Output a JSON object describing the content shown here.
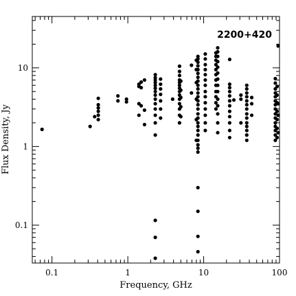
{
  "chart_data": {
    "type": "scatter",
    "title": "2200+420",
    "xlabel": "Frequency, GHz",
    "ylabel": "Flux Density, Jy",
    "xscale": "log",
    "yscale": "log",
    "xlim": [
      0.055,
      100
    ],
    "ylim": [
      0.033,
      45
    ],
    "x_ticks": [
      {
        "value": 0.1,
        "label": "0.1"
      },
      {
        "value": 1,
        "label": "1"
      },
      {
        "value": 10,
        "label": "10"
      },
      {
        "value": 100,
        "label": "100"
      }
    ],
    "y_ticks": [
      {
        "value": 0.1,
        "label": "0.1"
      },
      {
        "value": 1,
        "label": "1"
      },
      {
        "value": 10,
        "label": "10"
      }
    ],
    "grid": false,
    "points": [
      [
        0.074,
        1.65
      ],
      [
        0.318,
        1.8
      ],
      [
        0.365,
        2.4
      ],
      [
        0.408,
        2.2
      ],
      [
        0.408,
        2.5
      ],
      [
        0.408,
        2.8
      ],
      [
        0.408,
        3.1
      ],
      [
        0.408,
        3.4
      ],
      [
        0.408,
        4.1
      ],
      [
        0.74,
        3.8
      ],
      [
        0.74,
        4.4
      ],
      [
        0.96,
        3.7
      ],
      [
        0.96,
        4.0
      ],
      [
        1.4,
        2.5
      ],
      [
        1.4,
        3.5
      ],
      [
        1.4,
        5.8
      ],
      [
        1.4,
        6.2
      ],
      [
        1.5,
        3.3
      ],
      [
        1.5,
        5.6
      ],
      [
        1.5,
        6.6
      ],
      [
        1.66,
        1.9
      ],
      [
        1.66,
        2.9
      ],
      [
        1.66,
        7.0
      ],
      [
        2.3,
        0.038
      ],
      [
        2.3,
        0.07
      ],
      [
        2.3,
        0.115
      ],
      [
        2.3,
        1.4
      ],
      [
        2.3,
        2.0
      ],
      [
        2.3,
        2.5
      ],
      [
        2.3,
        3.0
      ],
      [
        2.3,
        3.5
      ],
      [
        2.3,
        4.0
      ],
      [
        2.3,
        4.5
      ],
      [
        2.3,
        5.0
      ],
      [
        2.3,
        5.5
      ],
      [
        2.3,
        6.0
      ],
      [
        2.3,
        6.5
      ],
      [
        2.3,
        7.0
      ],
      [
        2.3,
        7.5
      ],
      [
        2.3,
        8.2
      ],
      [
        2.7,
        2.3
      ],
      [
        2.7,
        3.0
      ],
      [
        2.7,
        3.8
      ],
      [
        2.7,
        4.6
      ],
      [
        2.7,
        5.4
      ],
      [
        2.7,
        6.2
      ],
      [
        2.7,
        7.2
      ],
      [
        3.9,
        4.0
      ],
      [
        4.8,
        2.0
      ],
      [
        4.8,
        2.5
      ],
      [
        4.8,
        3.0
      ],
      [
        4.8,
        3.5
      ],
      [
        4.8,
        4.0
      ],
      [
        4.8,
        4.5
      ],
      [
        4.8,
        5.0
      ],
      [
        4.8,
        5.5
      ],
      [
        4.8,
        6.0
      ],
      [
        4.8,
        6.5
      ],
      [
        4.8,
        7.0
      ],
      [
        4.8,
        8.0
      ],
      [
        4.8,
        9.0
      ],
      [
        4.8,
        10.5
      ],
      [
        5.0,
        2.4
      ],
      [
        5.0,
        3.2
      ],
      [
        5.0,
        4.2
      ],
      [
        5.0,
        5.2
      ],
      [
        5.0,
        6.8
      ],
      [
        6.9,
        4.8
      ],
      [
        6.9,
        10.8
      ],
      [
        8.0,
        1.2
      ],
      [
        8.0,
        2.2
      ],
      [
        8.0,
        4.0
      ],
      [
        8.0,
        6.5
      ],
      [
        8.0,
        9.5
      ],
      [
        8.0,
        12.5
      ],
      [
        8.4,
        0.046
      ],
      [
        8.4,
        0.072
      ],
      [
        8.4,
        0.15
      ],
      [
        8.4,
        0.3
      ],
      [
        8.4,
        0.85
      ],
      [
        8.4,
        0.95
      ],
      [
        8.4,
        1.05
      ],
      [
        8.4,
        1.2
      ],
      [
        8.4,
        1.4
      ],
      [
        8.4,
        1.6
      ],
      [
        8.4,
        1.8
      ],
      [
        8.4,
        2.0
      ],
      [
        8.4,
        2.3
      ],
      [
        8.4,
        2.6
      ],
      [
        8.4,
        3.0
      ],
      [
        8.4,
        3.4
      ],
      [
        8.4,
        3.8
      ],
      [
        8.4,
        4.3
      ],
      [
        8.4,
        4.8
      ],
      [
        8.4,
        5.4
      ],
      [
        8.4,
        6.0
      ],
      [
        8.4,
        6.8
      ],
      [
        8.4,
        7.6
      ],
      [
        8.4,
        8.5
      ],
      [
        8.4,
        9.5
      ],
      [
        8.4,
        10.6
      ],
      [
        8.4,
        11.8
      ],
      [
        8.4,
        13.0
      ],
      [
        8.4,
        14.0
      ],
      [
        10.5,
        1.6
      ],
      [
        10.5,
        2.0
      ],
      [
        10.5,
        2.5
      ],
      [
        10.5,
        3.0
      ],
      [
        10.5,
        3.6
      ],
      [
        10.5,
        4.3
      ],
      [
        10.5,
        5.0
      ],
      [
        10.5,
        6.0
      ],
      [
        10.5,
        7.0
      ],
      [
        10.5,
        8.2
      ],
      [
        10.5,
        9.5
      ],
      [
        10.5,
        11.0
      ],
      [
        10.5,
        13.0
      ],
      [
        10.5,
        15.0
      ],
      [
        14.5,
        3.0
      ],
      [
        14.5,
        3.6
      ],
      [
        14.5,
        4.3
      ],
      [
        14.5,
        5.0
      ],
      [
        14.5,
        6.0
      ],
      [
        14.5,
        7.0
      ],
      [
        14.5,
        8.2
      ],
      [
        14.5,
        9.5
      ],
      [
        14.5,
        11.0
      ],
      [
        14.5,
        12.5
      ],
      [
        14.5,
        14.0
      ],
      [
        14.5,
        15.5
      ],
      [
        15.3,
        1.5
      ],
      [
        15.3,
        2.0
      ],
      [
        15.3,
        2.6
      ],
      [
        15.3,
        3.3
      ],
      [
        15.3,
        4.0
      ],
      [
        15.3,
        5.0
      ],
      [
        15.3,
        6.0
      ],
      [
        15.3,
        7.2
      ],
      [
        15.3,
        8.6
      ],
      [
        15.3,
        10.2
      ],
      [
        15.3,
        12.0
      ],
      [
        15.3,
        14.0
      ],
      [
        15.3,
        16.0
      ],
      [
        15.3,
        18.0
      ],
      [
        22.0,
        1.3
      ],
      [
        22.0,
        1.6
      ],
      [
        22.0,
        2.0
      ],
      [
        22.0,
        2.4
      ],
      [
        22.0,
        2.8
      ],
      [
        22.0,
        3.3
      ],
      [
        22.0,
        3.8
      ],
      [
        22.0,
        4.4
      ],
      [
        22.0,
        5.0
      ],
      [
        22.0,
        5.6
      ],
      [
        22.0,
        6.2
      ],
      [
        22.0,
        12.8
      ],
      [
        25.0,
        3.9
      ],
      [
        31.0,
        2.0
      ],
      [
        31.0,
        4.0
      ],
      [
        31.0,
        4.5
      ],
      [
        37.0,
        1.2
      ],
      [
        37.0,
        1.4
      ],
      [
        37.0,
        1.6
      ],
      [
        37.0,
        1.8
      ],
      [
        37.0,
        2.0
      ],
      [
        37.0,
        2.3
      ],
      [
        37.0,
        2.6
      ],
      [
        37.0,
        3.0
      ],
      [
        37.0,
        3.4
      ],
      [
        37.0,
        3.8
      ],
      [
        37.0,
        4.3
      ],
      [
        37.0,
        4.8
      ],
      [
        37.0,
        5.4
      ],
      [
        37.0,
        6.0
      ],
      [
        43.0,
        2.5
      ],
      [
        43.0,
        3.5
      ],
      [
        43.0,
        4.2
      ],
      [
        88.0,
        1.2
      ],
      [
        88.0,
        1.4
      ],
      [
        88.0,
        1.6
      ],
      [
        88.0,
        1.8
      ],
      [
        88.0,
        2.0
      ],
      [
        88.0,
        2.3
      ],
      [
        88.0,
        2.6
      ],
      [
        88.0,
        3.0
      ],
      [
        88.0,
        3.4
      ],
      [
        88.0,
        3.8
      ],
      [
        88.0,
        4.3
      ],
      [
        88.0,
        4.8
      ],
      [
        88.0,
        5.4
      ],
      [
        88.0,
        6.4
      ],
      [
        88.0,
        7.3
      ],
      [
        93.0,
        1.3
      ],
      [
        93.0,
        1.7
      ],
      [
        93.0,
        2.2
      ],
      [
        93.0,
        2.8
      ],
      [
        93.0,
        3.6
      ],
      [
        93.0,
        4.5
      ],
      [
        93.0,
        5.8
      ],
      [
        96.0,
        1.5
      ],
      [
        96.0,
        2.5
      ],
      [
        96.0,
        3.5
      ],
      [
        96.0,
        19.0
      ]
    ]
  }
}
